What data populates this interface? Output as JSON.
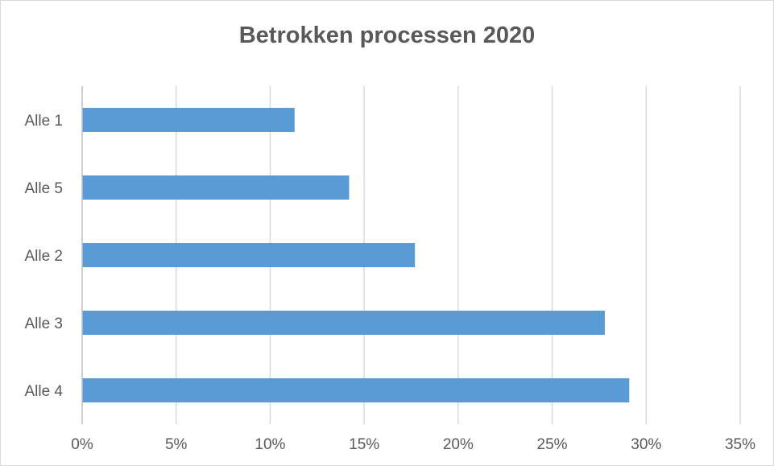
{
  "chart_data": {
    "type": "bar",
    "orientation": "horizontal",
    "title": "Betrokken processen 2020",
    "categories": [
      "Alle 1",
      "Alle 5",
      "Alle 2",
      "Alle 3",
      "Alle 4"
    ],
    "values": [
      11.3,
      14.2,
      17.7,
      27.8,
      29.1
    ],
    "xlim": [
      0,
      35
    ],
    "xticks": [
      0,
      5,
      10,
      15,
      20,
      25,
      30,
      35
    ],
    "xtick_labels": [
      "0%",
      "5%",
      "10%",
      "15%",
      "20%",
      "25%",
      "30%",
      "35%"
    ],
    "xlabel": "",
    "ylabel": "",
    "grid": "vertical",
    "legend": "none",
    "colors": {
      "bar": "#5b9bd5",
      "grid": "#d9d9d9",
      "axis": "#bfbfbf",
      "text": "#595959"
    }
  }
}
